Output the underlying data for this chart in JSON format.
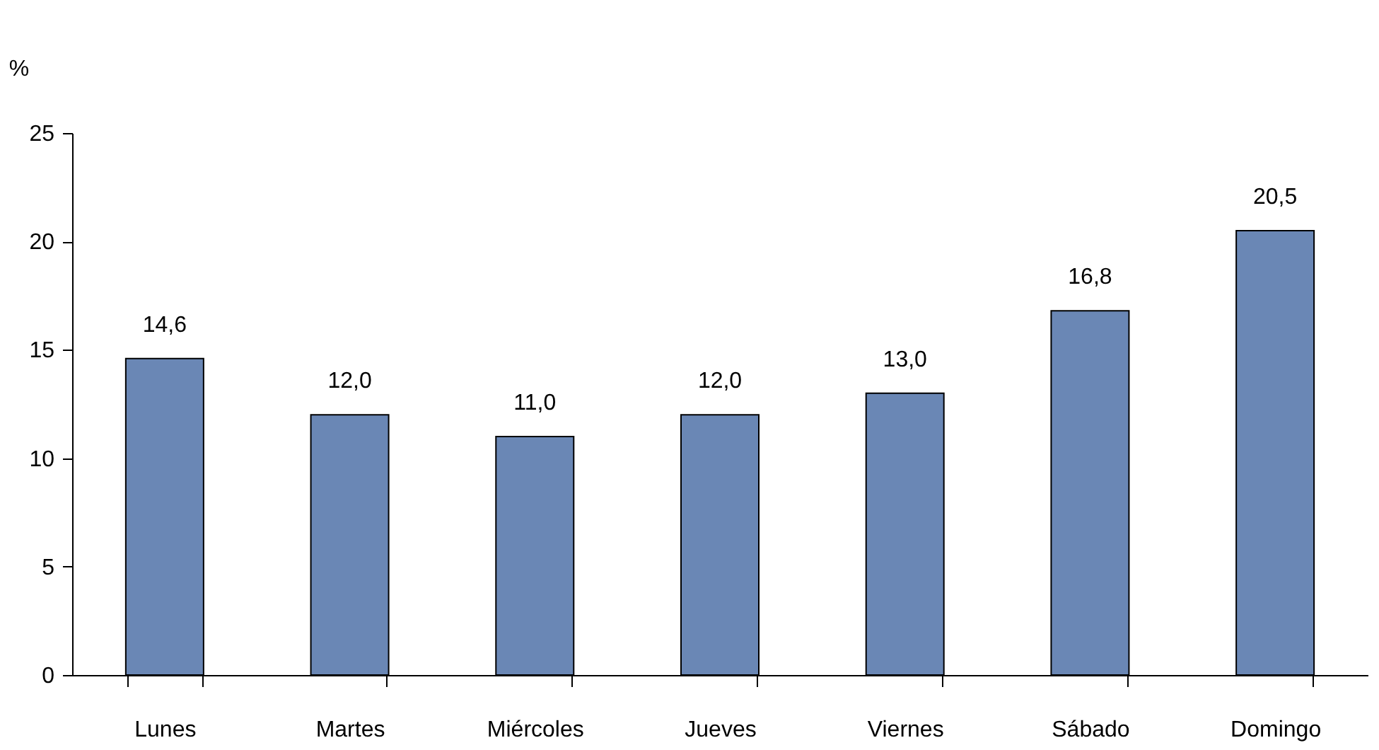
{
  "chart_data": {
    "type": "bar",
    "ylabel": "%",
    "categories": [
      "Lunes",
      "Martes",
      "Miércoles",
      "Jueves",
      "Viernes",
      "Sábado",
      "Domingo"
    ],
    "values": [
      14.6,
      12.0,
      11.0,
      12.0,
      13.0,
      16.8,
      20.5
    ],
    "value_labels": [
      "14,6",
      "12,0",
      "11,0",
      "12,0",
      "13,0",
      "16,8",
      "20,5"
    ],
    "color": "#6a87b5",
    "ylim": [
      0,
      25
    ],
    "yticks": [
      0,
      5,
      10,
      15,
      20,
      25
    ],
    "grid": false
  }
}
